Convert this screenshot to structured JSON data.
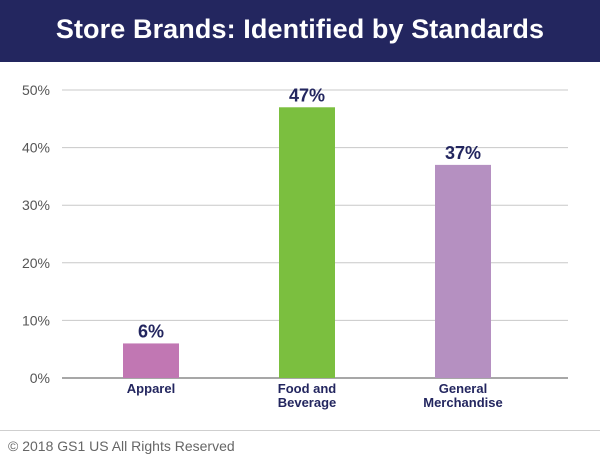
{
  "header": {
    "title": "Store Brands: Identified by Standards"
  },
  "footer": {
    "copyright": "© 2018 GS1 US All Rights Reserved"
  },
  "colors": {
    "header_bg": "#23265f",
    "apparel": "#c177b3",
    "food_beverage": "#7bbf3f",
    "general_merchandise": "#b590c1",
    "value_label": "#23265f"
  },
  "chart_data": {
    "type": "bar",
    "title": "Store Brands: Identified by Standards",
    "xlabel": "",
    "ylabel": "",
    "ylim": [
      0,
      50
    ],
    "yticks": [
      "0%",
      "10%",
      "20%",
      "30%",
      "40%",
      "50%"
    ],
    "grid": true,
    "categories": [
      [
        "Apparel"
      ],
      [
        "Food and",
        "Beverage"
      ],
      [
        "General",
        "Merchandise"
      ]
    ],
    "values": [
      6,
      47,
      37
    ],
    "value_labels": [
      "6%",
      "47%",
      "37%"
    ],
    "bar_colors": [
      "#c177b3",
      "#7bbf3f",
      "#b590c1"
    ]
  }
}
